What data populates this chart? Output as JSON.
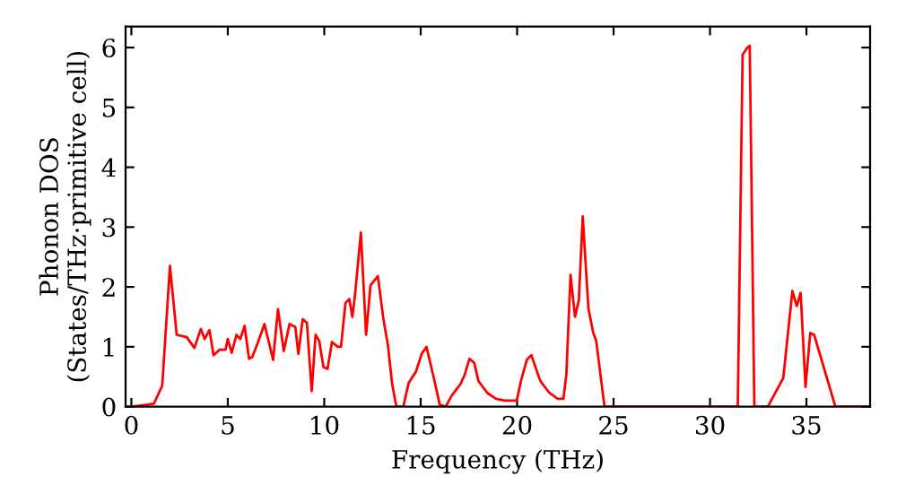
{
  "chart_data": {
    "type": "line",
    "xlabel": "Frequency (THz)",
    "ylabel": "Phonon DOS\n(States/THz·primitive cell)",
    "xlim": [
      -0.3,
      38.3
    ],
    "ylim": [
      0,
      6.35
    ],
    "xticks": [
      0,
      5,
      10,
      15,
      20,
      25,
      30,
      35
    ],
    "yticks": [
      0,
      1,
      2,
      3,
      4,
      5,
      6
    ],
    "grid": false,
    "marker": "none",
    "line_style": "solid",
    "series": [
      {
        "color": "#ff0000",
        "x": [
          0,
          0.5,
          1.17,
          1.6,
          2.0,
          2.35,
          2.87,
          3.27,
          3.6,
          3.8,
          4.05,
          4.26,
          4.57,
          4.88,
          5.0,
          5.2,
          5.45,
          5.65,
          5.87,
          6.1,
          6.27,
          6.57,
          6.9,
          7.35,
          7.6,
          7.9,
          8.2,
          8.5,
          8.66,
          8.88,
          9.1,
          9.35,
          9.55,
          9.74,
          9.96,
          10.17,
          10.4,
          10.7,
          10.87,
          11.1,
          11.3,
          11.46,
          11.6,
          11.9,
          12.17,
          12.4,
          12.78,
          13.06,
          13.3,
          13.52,
          13.74,
          14.1,
          14.38,
          14.75,
          15.05,
          15.3,
          15.68,
          15.99,
          16.3,
          16.6,
          17.07,
          17.28,
          17.53,
          17.78,
          17.99,
          18.45,
          18.9,
          19.37,
          19.98,
          20.2,
          20.5,
          20.74,
          21.2,
          21.67,
          22.1,
          22.4,
          22.55,
          22.77,
          23.0,
          23.2,
          23.4,
          23.7,
          23.95,
          24.1,
          24.53,
          31.44,
          31.69,
          31.94,
          32.06,
          32.3,
          33.0,
          33.8,
          34.27,
          34.5,
          34.7,
          34.95,
          35.2,
          35.4,
          36.5,
          38.3
        ],
        "values": [
          0,
          0.02,
          0.05,
          0.35,
          2.35,
          1.2,
          1.16,
          0.98,
          1.3,
          1.13,
          1.28,
          0.86,
          0.95,
          0.95,
          1.13,
          0.9,
          1.2,
          1.13,
          1.35,
          0.8,
          0.83,
          1.08,
          1.38,
          0.78,
          1.63,
          0.93,
          1.38,
          1.33,
          0.88,
          1.46,
          1.4,
          0.26,
          1.2,
          1.1,
          0.66,
          0.63,
          1.08,
          1.0,
          1.0,
          1.73,
          1.8,
          1.5,
          1.88,
          2.91,
          1.2,
          2.03,
          2.18,
          1.48,
          1.03,
          0.38,
          0,
          0,
          0.4,
          0.58,
          0.88,
          1.0,
          0.48,
          0.03,
          0,
          0.18,
          0.38,
          0.53,
          0.8,
          0.73,
          0.43,
          0.23,
          0.13,
          0.1,
          0.1,
          0.43,
          0.78,
          0.86,
          0.43,
          0.23,
          0.13,
          0.13,
          0.53,
          2.2,
          1.5,
          1.78,
          3.18,
          1.63,
          1.23,
          1.1,
          0,
          0,
          5.88,
          6.0,
          6.03,
          0,
          0,
          0.48,
          1.93,
          1.68,
          1.9,
          0.33,
          1.23,
          1.2,
          0,
          0
        ]
      }
    ]
  }
}
